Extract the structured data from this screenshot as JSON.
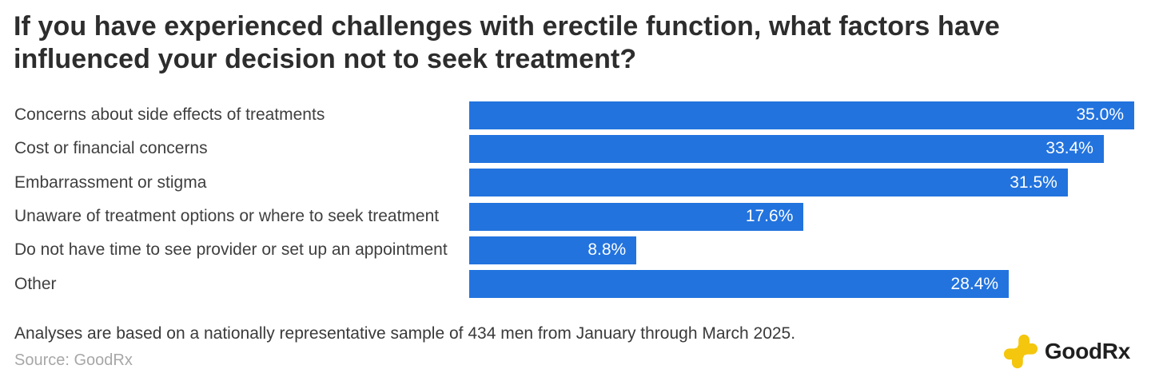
{
  "title": "If you have experienced challenges with erectile function, what factors have influenced your decision not to seek treatment?",
  "chart_data": {
    "type": "bar",
    "orientation": "horizontal",
    "title": "If you have experienced challenges with erectile function, what factors have influenced your decision not to seek treatment?",
    "categories": [
      "Concerns about side effects of treatments",
      "Cost or financial concerns",
      "Embarrassment or stigma",
      "Unaware of treatment options or where to seek treatment",
      "Do not have time to see provider or set up an appointment",
      "Other"
    ],
    "values": [
      35.0,
      33.4,
      31.5,
      17.6,
      8.8,
      28.4
    ],
    "value_labels": [
      "35.0%",
      "33.4%",
      "31.5%",
      "17.6%",
      "8.8%",
      "28.4%"
    ],
    "xlim": [
      0,
      35.0
    ],
    "xlabel": "",
    "ylabel": "",
    "grid": false,
    "legend": false,
    "bar_color": "#2273DE",
    "value_label_position": "inside-end",
    "value_label_color": "#FFFFFF"
  },
  "footer": {
    "note": "Analyses are based on a nationally representative sample of 434 men from January through March 2025.",
    "source": "Source: GoodRx"
  },
  "logo": {
    "brand_good": "Good",
    "brand_rx": "Rx",
    "icon_color": "#F4C60E",
    "text_color": "#1F1F1F"
  },
  "colors": {
    "background": "#FFFFFF",
    "title_text": "#2D2D2D",
    "category_text": "#3F3F3F",
    "note_text": "#3A3A3A",
    "source_text": "#A7A7A7",
    "bar": "#2273DE"
  }
}
